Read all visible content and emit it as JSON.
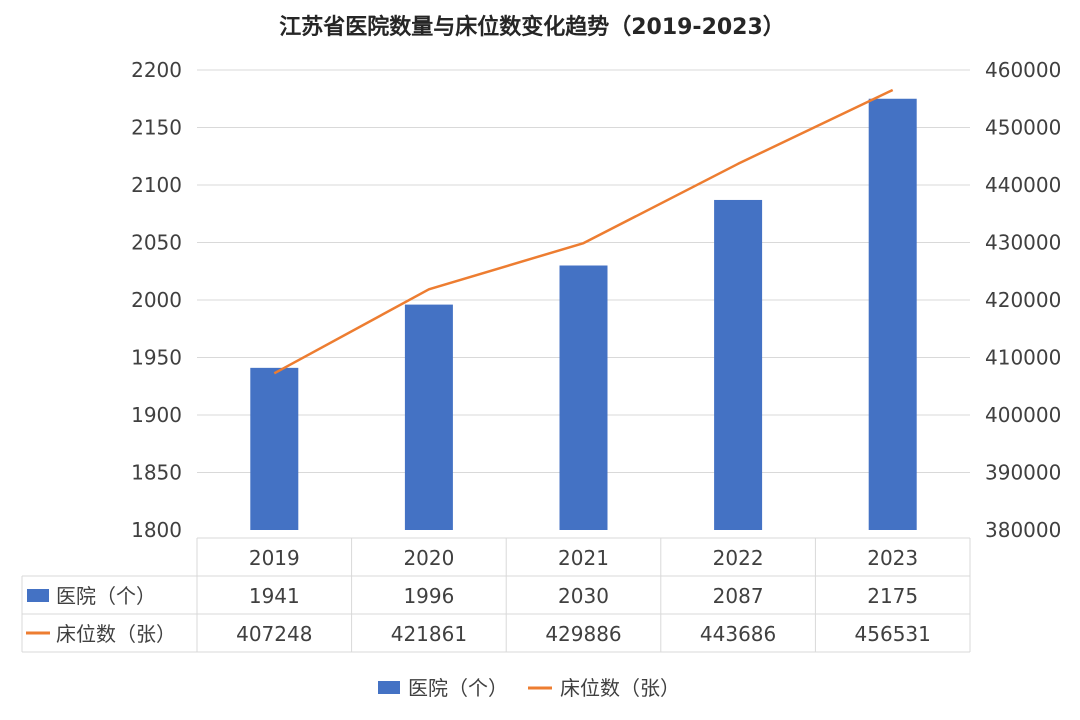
{
  "chart_data": {
    "type": "bar",
    "title": "江苏省医院数量与床位数变化趋势（2019-2023）",
    "categories": [
      "2019",
      "2020",
      "2021",
      "2022",
      "2023"
    ],
    "series": [
      {
        "name": "医院（个）",
        "type": "bar",
        "axis": "left",
        "color": "#4472C4",
        "values": [
          1941,
          1996,
          2030,
          2087,
          2175
        ]
      },
      {
        "name": "床位数（张）",
        "type": "line",
        "axis": "right",
        "color": "#ED7D31",
        "values": [
          407248,
          421861,
          429886,
          443686,
          456531
        ]
      }
    ],
    "y_left": {
      "min": 1800,
      "max": 2200,
      "step": 50
    },
    "y_right": {
      "min": 380000,
      "max": 460000,
      "step": 10000
    },
    "grid": true,
    "legend_position": "bottom",
    "data_table": true
  }
}
